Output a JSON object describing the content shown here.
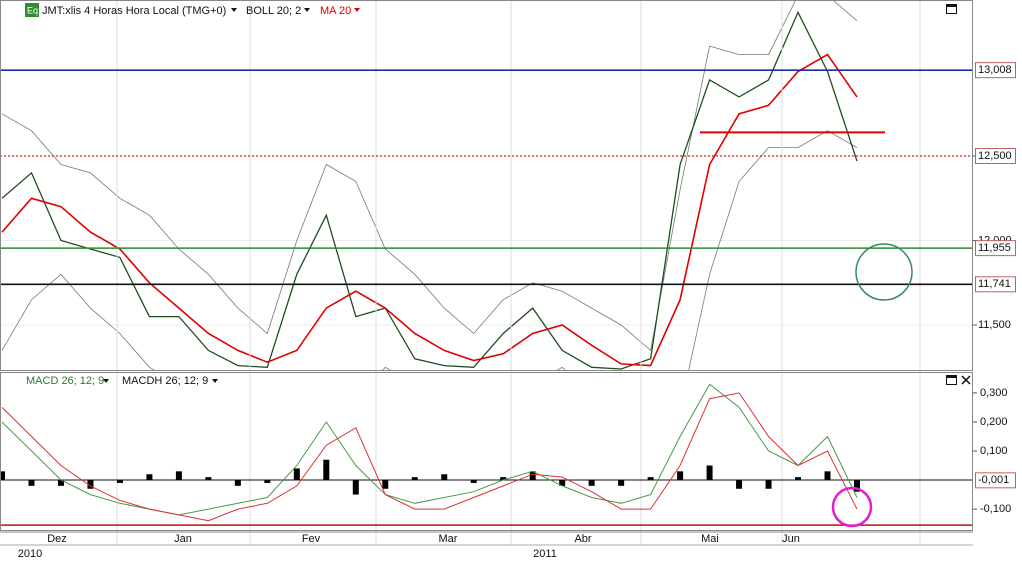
{
  "chart_data": [
    {
      "type": "line",
      "series": [
        {
          "name": "JMT:xlis 4 Horas Hora Local (TMG+0)",
          "color": "#1f4d1f",
          "values": [
            12250,
            12400,
            12000,
            11950,
            11900,
            11550,
            11550,
            11350,
            11260,
            11250,
            11800,
            12150,
            11550,
            11600,
            11300,
            11260,
            11250,
            11450,
            11600,
            11350,
            11250,
            11240,
            11300,
            12450,
            12950,
            12850,
            12950,
            13350,
            13000,
            12470
          ]
        },
        {
          "name": "MA 20",
          "color": "#e00000",
          "values": [
            12050,
            12250,
            12200,
            12050,
            11950,
            11750,
            11600,
            11450,
            11350,
            11280,
            11350,
            11600,
            11700,
            11600,
            11450,
            11350,
            11290,
            11330,
            11450,
            11500,
            11380,
            11270,
            11260,
            11650,
            12450,
            12750,
            12800,
            13000,
            13100,
            12850
          ]
        }
      ],
      "bands": {
        "name": "BOLL 20; 2",
        "color": "#777777",
        "upper": [
          12750,
          12650,
          12450,
          12400,
          12250,
          12150,
          11950,
          11800,
          11600,
          11450,
          12000,
          12450,
          12350,
          11950,
          11800,
          11600,
          11450,
          11650,
          11750,
          11700,
          11600,
          11500,
          11350,
          12300,
          13150,
          13100,
          13100,
          13450,
          13450,
          13300
        ],
        "lower": [
          11350,
          11650,
          11800,
          11600,
          11450,
          11250,
          11150,
          11050,
          11050,
          11100,
          10900,
          10800,
          11050,
          11250,
          11150,
          11050,
          11050,
          11000,
          11150,
          11250,
          11100,
          11000,
          11100,
          11000,
          11800,
          12350,
          12550,
          12550,
          12650,
          12550
        ]
      },
      "ylim": [
        11234,
        13423
      ],
      "yticks": [
        {
          "value": 11500,
          "label": "11,500"
        },
        {
          "value": 12000,
          "label": "12,000"
        },
        {
          "value": 12500,
          "label": "12,500"
        }
      ],
      "grid": true,
      "levels": [
        {
          "value": 13008,
          "label": "13,008",
          "color": "#1a2fa8",
          "style": "solid"
        },
        {
          "value": 12500,
          "label": "12,500",
          "color": "#d02020",
          "style": "dotted"
        },
        {
          "value": 11955,
          "label": "11,955",
          "color": "#2a8a2a",
          "style": "solid"
        },
        {
          "value": 11741,
          "label": "11,741",
          "color": "#111111",
          "style": "solid"
        },
        {
          "value": 12640,
          "color": "#e00000",
          "style": "segment"
        }
      ],
      "time_axis": {
        "months": [
          "Dez",
          "Jan",
          "Fev",
          "Mar",
          "Abr",
          "Mai",
          "Jun"
        ],
        "years": [
          "2010",
          "2011"
        ]
      }
    },
    {
      "type": "macd",
      "series": [
        {
          "name": "MACD 26; 12; 9",
          "color": "#4a9a4a",
          "values": [
            0.2,
            0.1,
            0.0,
            -0.05,
            -0.08,
            -0.1,
            -0.12,
            -0.1,
            -0.08,
            -0.06,
            0.05,
            0.2,
            0.05,
            -0.05,
            -0.08,
            -0.06,
            -0.04,
            0.0,
            0.03,
            -0.02,
            -0.06,
            -0.08,
            -0.05,
            0.15,
            0.33,
            0.25,
            0.1,
            0.05,
            0.15,
            -0.06
          ],
          "signal": [
            0.25,
            0.15,
            0.05,
            -0.02,
            -0.07,
            -0.1,
            -0.12,
            -0.14,
            -0.1,
            -0.08,
            -0.02,
            0.12,
            0.18,
            -0.05,
            -0.1,
            -0.1,
            -0.06,
            -0.02,
            0.02,
            0.01,
            -0.04,
            -0.1,
            -0.1,
            0.05,
            0.28,
            0.3,
            0.15,
            0.05,
            0.1,
            -0.1
          ],
          "signal_color": "#e03030"
        }
      ],
      "histogram": {
        "name": "MACDH 26; 12; 9",
        "color": "#000000",
        "values": [
          0.03,
          -0.02,
          -0.02,
          -0.03,
          -0.01,
          0.02,
          0.03,
          0.01,
          -0.02,
          -0.01,
          0.04,
          0.07,
          -0.05,
          -0.03,
          0.01,
          0.02,
          -0.01,
          0.01,
          0.03,
          -0.02,
          -0.02,
          -0.02,
          0.01,
          0.03,
          0.05,
          -0.03,
          -0.03,
          0.01,
          0.03,
          -0.04
        ]
      },
      "ylim": [
        -0.172,
        0.372
      ],
      "yticks": [
        {
          "value": -0.1,
          "label": "-0,100"
        },
        {
          "value": 0.1,
          "label": "0,100"
        },
        {
          "value": 0.2,
          "label": "0,200"
        },
        {
          "value": 0.3,
          "label": "0,300"
        }
      ],
      "last_value": {
        "value": -0.001,
        "label": "-0,001"
      },
      "baseline": {
        "value": -0.155,
        "color": "#c01010"
      }
    }
  ]
}
